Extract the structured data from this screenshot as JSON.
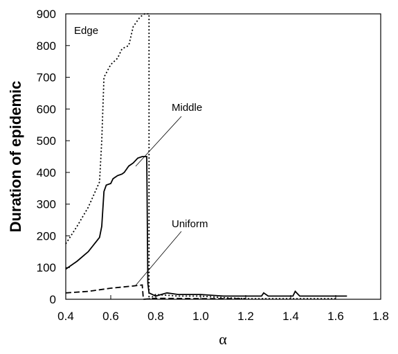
{
  "chart_data": {
    "type": "line",
    "xlabel": "α",
    "ylabel": "Duration of epidemic",
    "annotations": [
      "Edge",
      "Middle",
      "Uniform"
    ],
    "xlim": [
      0.4,
      1.8
    ],
    "ylim": [
      0,
      900
    ],
    "xticks": [
      0.4,
      0.6,
      0.8,
      {
        "value": 1,
        "label": "1.0"
      },
      1.2,
      1.4,
      1.6,
      1.8
    ],
    "yticks": [
      0,
      100,
      200,
      300,
      400,
      500,
      600,
      700,
      800,
      900
    ],
    "series": [
      {
        "name": "Edge",
        "color": "#000000",
        "dash": "2,3",
        "x": [
          0.4,
          0.45,
          0.5,
          0.55,
          0.56,
          0.57,
          0.6,
          0.63,
          0.65,
          0.68,
          0.7,
          0.73,
          0.75,
          0.77,
          0.77,
          0.8,
          0.9,
          1.0,
          1.1,
          1.2,
          1.6
        ],
        "values": [
          175,
          230,
          290,
          370,
          500,
          700,
          740,
          760,
          790,
          800,
          860,
          890,
          900,
          900,
          0,
          15,
          10,
          10,
          5,
          2,
          2
        ]
      },
      {
        "name": "Middle",
        "color": "#000000",
        "dash": "none",
        "x": [
          0.4,
          0.45,
          0.5,
          0.55,
          0.56,
          0.57,
          0.58,
          0.6,
          0.61,
          0.63,
          0.65,
          0.66,
          0.68,
          0.7,
          0.72,
          0.74,
          0.76,
          0.765,
          0.77,
          0.8,
          0.85,
          0.9,
          1.0,
          1.1,
          1.27,
          1.28,
          1.3,
          1.41,
          1.42,
          1.44,
          1.65
        ],
        "values": [
          95,
          120,
          150,
          195,
          230,
          340,
          360,
          365,
          380,
          390,
          395,
          400,
          420,
          430,
          445,
          450,
          450,
          50,
          20,
          10,
          20,
          15,
          15,
          10,
          10,
          20,
          10,
          10,
          25,
          10,
          10
        ]
      },
      {
        "name": "Uniform",
        "color": "#000000",
        "dash": "8,4",
        "x": [
          0.4,
          0.5,
          0.6,
          0.7,
          0.74,
          0.745,
          0.8,
          1.0,
          1.2
        ],
        "values": [
          20,
          25,
          35,
          42,
          45,
          0,
          3,
          2,
          2
        ]
      }
    ]
  }
}
